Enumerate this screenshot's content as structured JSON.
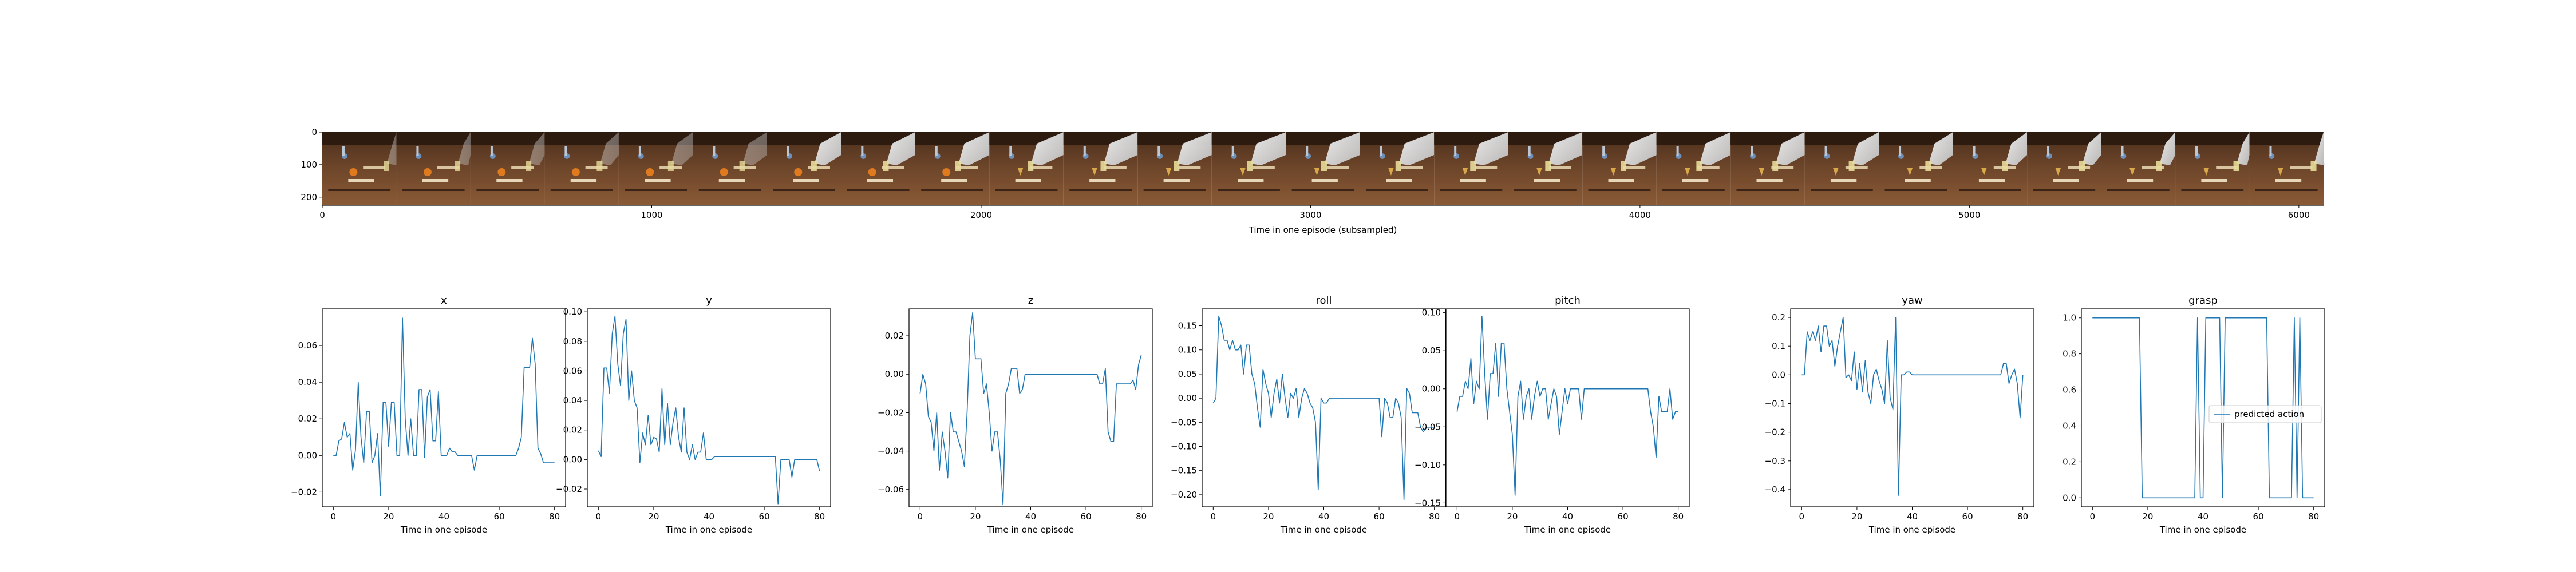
{
  "strip": {
    "xlabel": "Time in one episode (subsampled)",
    "x_ticks": [
      "0",
      "1000",
      "2000",
      "3000",
      "4000",
      "5000",
      "6000"
    ],
    "y_ticks": [
      "0",
      "100",
      "200"
    ],
    "frame_count": 27,
    "xlim": [
      0,
      6075
    ],
    "ylim": [
      0,
      225
    ]
  },
  "chart_data": [
    {
      "type": "line",
      "title": "x",
      "xlabel": "Time in one episode",
      "xlim": [
        -4,
        84
      ],
      "ylim": [
        -0.028,
        0.08
      ],
      "x_ticks": [
        0,
        20,
        40,
        60,
        80
      ],
      "y_ticks": [
        -0.02,
        0.0,
        0.02,
        0.04,
        0.06
      ],
      "y_tick_labels": [
        "−0.02",
        "0.00",
        "0.02",
        "0.04",
        "0.06"
      ],
      "series": [
        {
          "color": "#1f77b4",
          "values": [
            0.0,
            0.0,
            0.008,
            0.009,
            0.018,
            0.01,
            0.012,
            -0.008,
            0.003,
            0.04,
            0.01,
            -0.004,
            0.024,
            0.024,
            -0.004,
            0.0,
            0.012,
            -0.022,
            0.029,
            0.029,
            0.005,
            0.029,
            0.029,
            0.0,
            0.0,
            0.075,
            0.02,
            0.0,
            0.02,
            0.0,
            0.0,
            0.036,
            0.036,
            -0.001,
            0.032,
            0.036,
            0.008,
            0.008,
            0.035,
            0.0,
            0.0,
            0.0,
            0.004,
            0.002,
            0.002,
            0.0,
            0.0,
            0.0,
            0.0,
            0.0,
            0.0,
            -0.008,
            0.0,
            0.0,
            0.0,
            0.0,
            0.0,
            0.0,
            0.0,
            0.0,
            0.0,
            0.0,
            0.0,
            0.0,
            0.0,
            0.0,
            0.0,
            0.004,
            0.01,
            0.048,
            0.048,
            0.048,
            0.064,
            0.05,
            0.004,
            0.001,
            -0.004,
            -0.004,
            -0.004,
            -0.004,
            -0.004
          ]
        }
      ]
    },
    {
      "type": "line",
      "title": "y",
      "xlabel": "Time in one episode",
      "xlim": [
        -4,
        84
      ],
      "ylim": [
        -0.032,
        0.102
      ],
      "x_ticks": [
        0,
        20,
        40,
        60,
        80
      ],
      "y_ticks": [
        -0.02,
        0.0,
        0.02,
        0.04,
        0.06,
        0.08,
        0.1
      ],
      "y_tick_labels": [
        "−0.02",
        "0.00",
        "0.02",
        "0.04",
        "0.06",
        "0.08",
        "0.10"
      ],
      "series": [
        {
          "color": "#1f77b4",
          "values": [
            0.006,
            0.002,
            0.062,
            0.062,
            0.045,
            0.085,
            0.097,
            0.065,
            0.05,
            0.085,
            0.095,
            0.04,
            0.06,
            0.04,
            0.035,
            -0.002,
            0.018,
            0.01,
            0.03,
            0.01,
            0.015,
            0.014,
            0.005,
            0.048,
            0.01,
            0.038,
            0.01,
            0.025,
            0.035,
            0.015,
            0.005,
            0.035,
            0.005,
            0.0,
            0.01,
            0.0,
            0.005,
            0.005,
            0.018,
            0.0,
            0.0,
            0.0,
            0.002,
            0.002,
            0.002,
            0.002,
            0.002,
            0.002,
            0.002,
            0.002,
            0.002,
            0.002,
            0.002,
            0.002,
            0.002,
            0.002,
            0.002,
            0.002,
            0.002,
            0.002,
            0.002,
            0.002,
            0.002,
            0.002,
            0.002,
            -0.03,
            0.0,
            0.0,
            0.0,
            0.0,
            -0.012,
            0.0,
            0.0,
            0.0,
            0.0,
            0.0,
            0.0,
            0.0,
            0.0,
            0.0,
            -0.008
          ]
        }
      ]
    },
    {
      "type": "line",
      "title": "z",
      "xlabel": "Time in one episode",
      "xlim": [
        -4,
        84
      ],
      "ylim": [
        -0.069,
        0.034
      ],
      "x_ticks": [
        0,
        20,
        40,
        60,
        80
      ],
      "y_ticks": [
        -0.06,
        -0.04,
        -0.02,
        0.0,
        0.02
      ],
      "y_tick_labels": [
        "−0.06",
        "−0.04",
        "−0.02",
        "0.00",
        "0.02"
      ],
      "series": [
        {
          "color": "#1f77b4",
          "values": [
            -0.01,
            0.0,
            -0.005,
            -0.022,
            -0.025,
            -0.04,
            -0.02,
            -0.05,
            -0.03,
            -0.04,
            -0.054,
            -0.02,
            -0.03,
            -0.03,
            -0.035,
            -0.04,
            -0.048,
            -0.02,
            0.02,
            0.032,
            0.008,
            0.008,
            0.008,
            -0.01,
            -0.005,
            -0.02,
            -0.04,
            -0.03,
            -0.03,
            -0.045,
            -0.068,
            -0.01,
            -0.005,
            0.003,
            0.003,
            0.003,
            -0.01,
            -0.008,
            0.0,
            0.0,
            0.0,
            0.0,
            0.0,
            0.0,
            0.0,
            0.0,
            0.0,
            0.0,
            0.0,
            0.0,
            0.0,
            0.0,
            0.0,
            0.0,
            0.0,
            0.0,
            0.0,
            0.0,
            0.0,
            0.0,
            0.0,
            0.0,
            0.0,
            0.0,
            0.0,
            -0.005,
            -0.005,
            0.003,
            -0.03,
            -0.035,
            -0.035,
            -0.005,
            -0.005,
            -0.005,
            -0.005,
            -0.005,
            -0.005,
            -0.003,
            -0.008,
            0.005,
            0.01
          ]
        }
      ]
    },
    {
      "type": "line",
      "title": "roll",
      "xlabel": "Time in one episode",
      "xlim": [
        -4,
        84
      ],
      "ylim": [
        -0.225,
        0.185
      ],
      "x_ticks": [
        0,
        20,
        40,
        60,
        80
      ],
      "y_ticks": [
        -0.2,
        -0.15,
        -0.1,
        -0.05,
        0.0,
        0.05,
        0.1,
        0.15
      ],
      "y_tick_labels": [
        "−0.20",
        "−0.15",
        "−0.10",
        "−0.05",
        "0.00",
        "0.05",
        "0.10",
        "0.15"
      ],
      "series": [
        {
          "color": "#1f77b4",
          "values": [
            -0.01,
            0.0,
            0.17,
            0.15,
            0.12,
            0.12,
            0.1,
            0.12,
            0.1,
            0.1,
            0.11,
            0.05,
            0.11,
            0.11,
            0.05,
            0.03,
            -0.02,
            -0.06,
            0.06,
            0.03,
            0.01,
            -0.04,
            0.01,
            0.04,
            -0.01,
            0.05,
            0.0,
            -0.04,
            0.01,
            0.0,
            0.02,
            -0.04,
            0.0,
            0.02,
            0.01,
            -0.01,
            -0.02,
            -0.05,
            -0.19,
            0.0,
            -0.01,
            -0.01,
            0.0,
            0.0,
            0.0,
            0.0,
            0.0,
            0.0,
            0.0,
            0.0,
            0.0,
            0.0,
            0.0,
            0.0,
            0.0,
            0.0,
            0.0,
            0.0,
            0.0,
            0.0,
            0.0,
            -0.08,
            0.0,
            -0.01,
            -0.04,
            -0.04,
            0.0,
            -0.01,
            -0.04,
            -0.21,
            0.02,
            0.01,
            -0.03,
            -0.03,
            -0.03,
            -0.06,
            -0.07,
            -0.06,
            -0.06,
            -0.06,
            -0.06
          ]
        }
      ]
    },
    {
      "type": "line",
      "title": "pitch",
      "xlabel": "Time in one episode",
      "xlim": [
        -4,
        84
      ],
      "ylim": [
        -0.155,
        0.105
      ],
      "x_ticks": [
        0,
        20,
        40,
        60,
        80
      ],
      "y_ticks": [
        -0.15,
        -0.1,
        -0.05,
        0.0,
        0.05,
        0.1
      ],
      "y_tick_labels": [
        "−0.15",
        "−0.10",
        "−0.05",
        "0.00",
        "0.05",
        "0.10"
      ],
      "series": [
        {
          "color": "#1f77b4",
          "values": [
            -0.03,
            -0.01,
            -0.01,
            0.01,
            0.0,
            0.04,
            -0.02,
            0.01,
            0.0,
            0.095,
            0.02,
            -0.04,
            0.02,
            0.02,
            0.06,
            -0.01,
            0.06,
            0.06,
            0.0,
            -0.03,
            -0.06,
            -0.14,
            -0.01,
            0.01,
            -0.04,
            -0.01,
            0.0,
            -0.04,
            -0.01,
            0.01,
            -0.01,
            0.0,
            0.0,
            -0.04,
            -0.02,
            0.0,
            -0.01,
            -0.06,
            -0.03,
            0.0,
            -0.02,
            0.0,
            0.0,
            0.0,
            0.0,
            -0.04,
            0.0,
            0.0,
            0.0,
            0.0,
            0.0,
            0.0,
            0.0,
            0.0,
            0.0,
            0.0,
            0.0,
            0.0,
            0.0,
            0.0,
            0.0,
            0.0,
            0.0,
            0.0,
            0.0,
            0.0,
            0.0,
            0.0,
            0.0,
            0.0,
            -0.03,
            -0.05,
            -0.09,
            -0.01,
            -0.03,
            -0.03,
            -0.03,
            0.0,
            -0.04,
            -0.03,
            -0.03
          ]
        }
      ]
    },
    {
      "type": "line",
      "title": "yaw",
      "xlabel": "Time in one episode",
      "xlim": [
        -4,
        84
      ],
      "ylim": [
        -0.46,
        0.23
      ],
      "x_ticks": [
        0,
        20,
        40,
        60,
        80
      ],
      "y_ticks": [
        -0.4,
        -0.3,
        -0.2,
        -0.1,
        0.0,
        0.1,
        0.2
      ],
      "y_tick_labels": [
        "−0.4",
        "−0.3",
        "−0.2",
        "−0.1",
        "0.0",
        "0.1",
        "0.2"
      ],
      "series": [
        {
          "color": "#1f77b4",
          "values": [
            0.0,
            0.0,
            0.15,
            0.12,
            0.15,
            0.12,
            0.17,
            0.08,
            0.17,
            0.17,
            0.1,
            0.12,
            0.03,
            0.1,
            0.15,
            0.2,
            -0.01,
            0.0,
            -0.02,
            0.08,
            -0.05,
            0.04,
            -0.06,
            0.05,
            -0.06,
            -0.1,
            0.0,
            0.02,
            -0.02,
            -0.05,
            -0.1,
            0.12,
            -0.08,
            -0.12,
            0.2,
            -0.42,
            0.0,
            0.0,
            0.01,
            0.01,
            0.0,
            0.0,
            0.0,
            0.0,
            0.0,
            0.0,
            0.0,
            0.0,
            0.0,
            0.0,
            0.0,
            0.0,
            0.0,
            0.0,
            0.0,
            0.0,
            0.0,
            0.0,
            0.0,
            0.0,
            0.0,
            0.0,
            0.0,
            0.0,
            0.0,
            0.0,
            0.0,
            0.0,
            0.0,
            0.0,
            0.0,
            0.0,
            0.0,
            0.04,
            0.04,
            -0.03,
            0.0,
            0.02,
            -0.03,
            -0.15,
            0.0
          ]
        }
      ]
    },
    {
      "type": "line",
      "title": "grasp",
      "xlabel": "Time in one episode",
      "xlim": [
        -4,
        84
      ],
      "ylim": [
        -0.05,
        1.05
      ],
      "x_ticks": [
        0,
        20,
        40,
        60,
        80
      ],
      "y_ticks": [
        0.0,
        0.2,
        0.4,
        0.6,
        0.8,
        1.0
      ],
      "y_tick_labels": [
        "0.0",
        "0.2",
        "0.4",
        "0.6",
        "0.8",
        "1.0"
      ],
      "legend": "right",
      "series": [
        {
          "name": "predicted action",
          "color": "#1f77b4",
          "values": [
            1,
            1,
            1,
            1,
            1,
            1,
            1,
            1,
            1,
            1,
            1,
            1,
            1,
            1,
            1,
            1,
            1,
            1,
            0,
            0,
            0,
            0,
            0,
            0,
            0,
            0,
            0,
            0,
            0,
            0,
            0,
            0,
            0,
            0,
            0,
            0,
            0,
            0,
            1,
            0,
            0,
            1,
            1,
            1,
            1,
            1,
            1,
            0,
            1,
            1,
            1,
            1,
            1,
            1,
            1,
            1,
            1,
            1,
            1,
            1,
            1,
            1,
            1,
            1,
            0,
            0,
            0,
            0,
            0,
            0,
            0,
            0,
            0,
            1,
            0,
            1,
            0,
            0,
            0,
            0,
            0
          ]
        }
      ]
    }
  ]
}
